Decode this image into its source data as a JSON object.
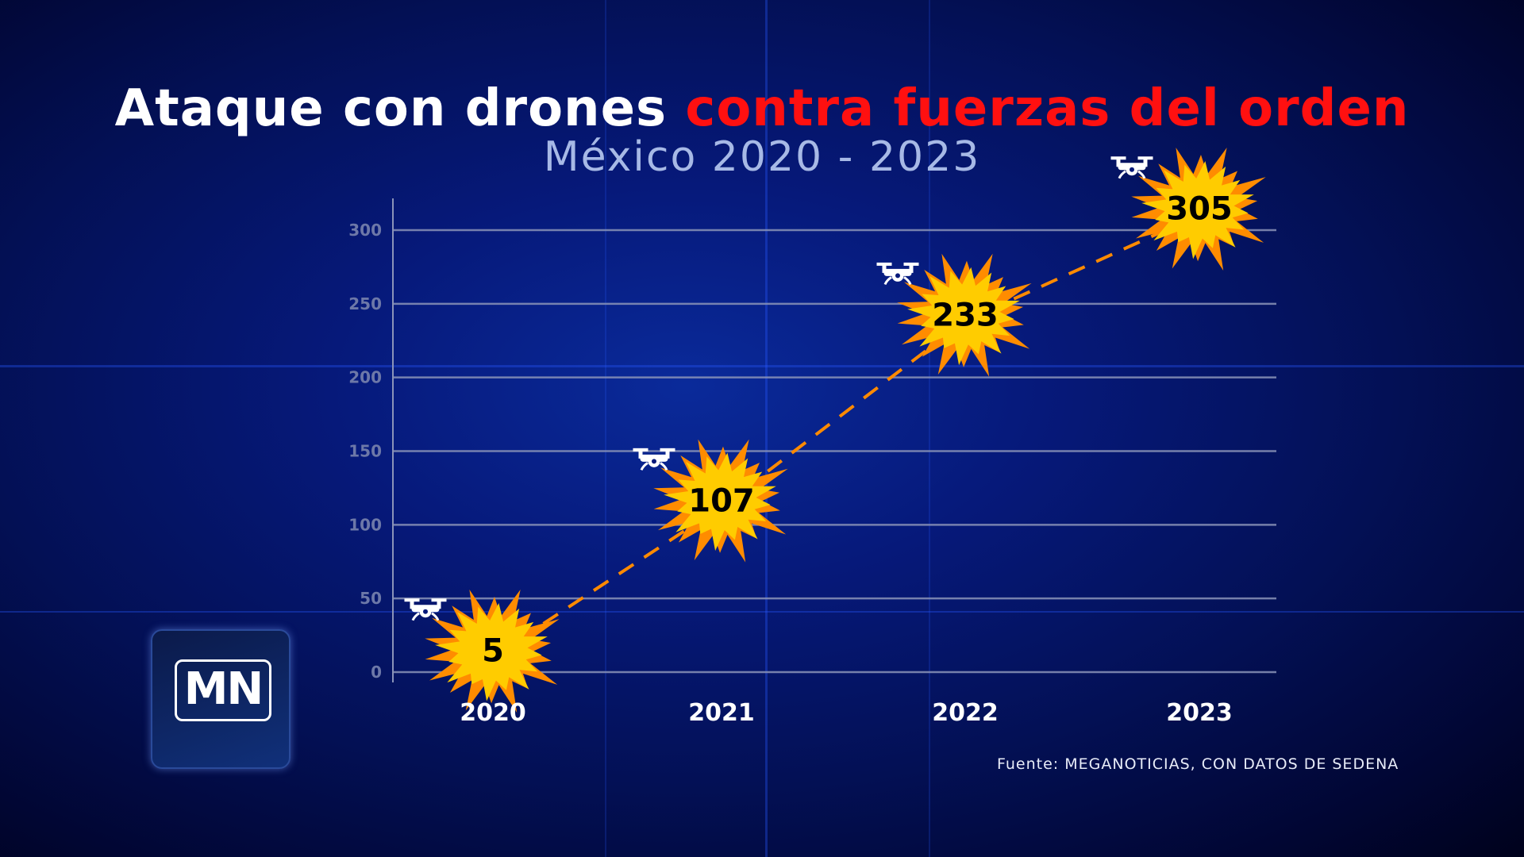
{
  "title": {
    "white": "Ataque con drones",
    "red": "contra fuerzas del orden"
  },
  "subtitle": "México 2020 - 2023",
  "logo": "MN",
  "source": "Fuente: MEGANOTICIAS, CON DATOS DE SEDENA",
  "colors": {
    "line": "#ff8a00",
    "burst_outer": "#ff8c00",
    "burst_inner": "#ffcc00",
    "title_red": "#ff1010"
  },
  "chart_data": {
    "type": "line",
    "title": "Ataque con drones contra fuerzas del orden",
    "subtitle": "México 2020 - 2023",
    "categories": [
      "2020",
      "2021",
      "2022",
      "2023"
    ],
    "values": [
      5,
      107,
      233,
      305
    ],
    "labels": [
      "5",
      "107",
      "233",
      "305"
    ],
    "yticks": [
      "0",
      "50",
      "100",
      "150",
      "200",
      "250",
      "300"
    ],
    "ylim": [
      0,
      300
    ],
    "grid": true,
    "line_style": "dashed",
    "marker_icon": "drone-icon"
  }
}
